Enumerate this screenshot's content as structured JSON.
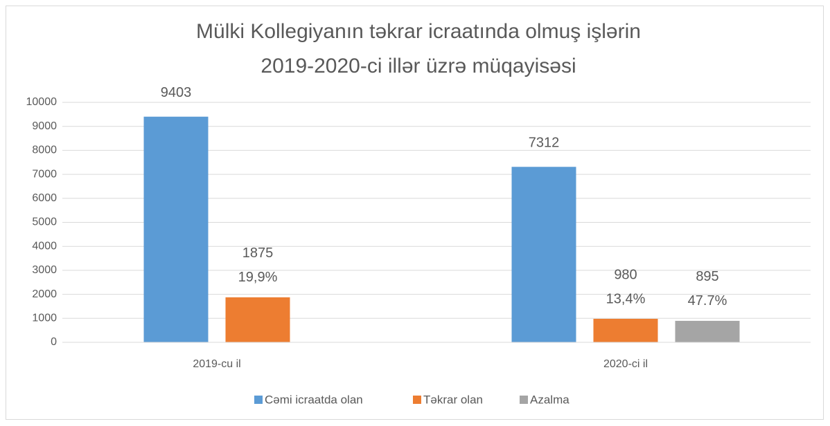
{
  "chart_data": {
    "type": "bar",
    "title": [
      "Mülki Kollegiyanın təkrar icraatında olmuş işlərin",
      "2019-2020-ci illər üzrə müqayisəsi"
    ],
    "categories": [
      "2019-cu il",
      "2020-ci il"
    ],
    "series": [
      {
        "name": "Cəmi icraatda olan",
        "color": "#5b9bd5",
        "values": [
          9403,
          7312
        ]
      },
      {
        "name": "Təkrar olan",
        "color": "#ed7d31",
        "values": [
          1875,
          980
        ],
        "percent_labels": [
          "19,9%",
          "13,4%"
        ]
      },
      {
        "name": "Azalma",
        "color": "#a5a5a5",
        "values": [
          null,
          895
        ],
        "percent_labels": [
          null,
          "47.7%"
        ]
      }
    ],
    "ylim": [
      0,
      10000
    ],
    "yticks": [
      0,
      1000,
      2000,
      3000,
      4000,
      5000,
      6000,
      7000,
      8000,
      9000,
      10000
    ],
    "grid": true,
    "legend": "bottom"
  }
}
